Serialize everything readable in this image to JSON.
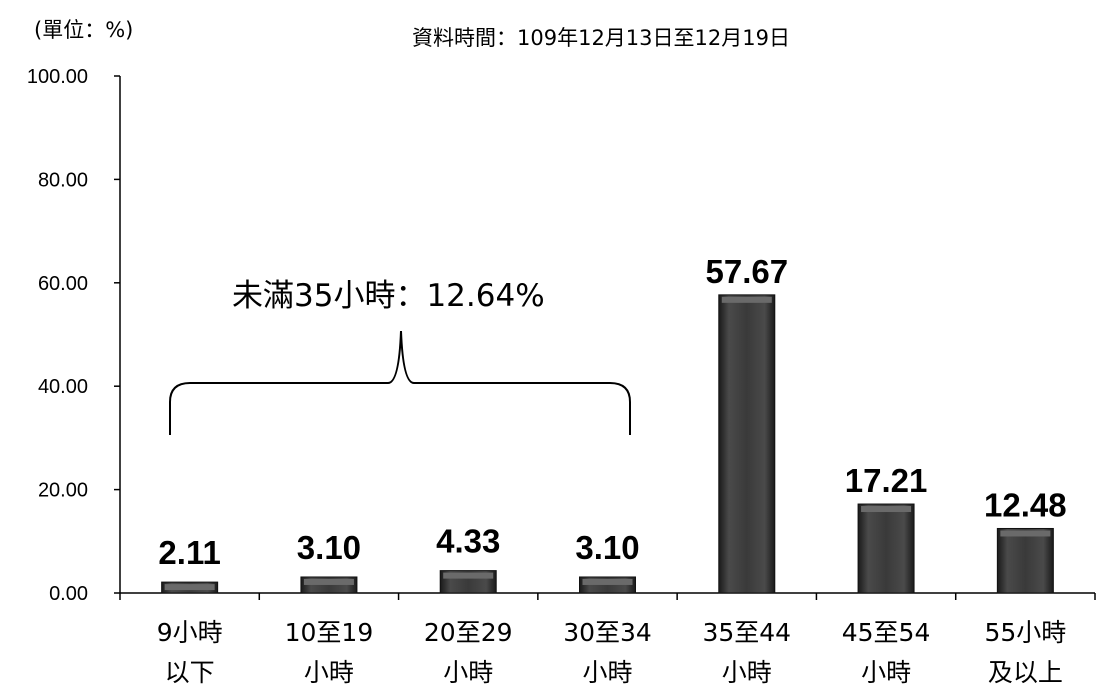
{
  "unit_label": "(單位：%)",
  "period_label": "資料時間：109年12月13日至12月19日",
  "annotation": "未滿35小時：12.64%",
  "chart_data": {
    "type": "bar",
    "title": "",
    "xlabel": "",
    "ylabel": "",
    "ylim": [
      0,
      100
    ],
    "yticks": [
      "0.00",
      "20.00",
      "40.00",
      "60.00",
      "80.00",
      "100.00"
    ],
    "categories": [
      [
        "9小時",
        "以下"
      ],
      [
        "10至19",
        "小時"
      ],
      [
        "20至29",
        "小時"
      ],
      [
        "30至34",
        "小時"
      ],
      [
        "35至44",
        "小時"
      ],
      [
        "45至54",
        "小時"
      ],
      [
        "55小時",
        "及以上"
      ]
    ],
    "values": [
      2.11,
      3.1,
      4.33,
      3.1,
      57.67,
      17.21,
      12.48
    ],
    "value_labels": [
      "2.11",
      "3.10",
      "4.33",
      "3.10",
      "57.67",
      "17.21",
      "12.48"
    ],
    "bar_color": "#3a3a3a",
    "grid": false
  }
}
